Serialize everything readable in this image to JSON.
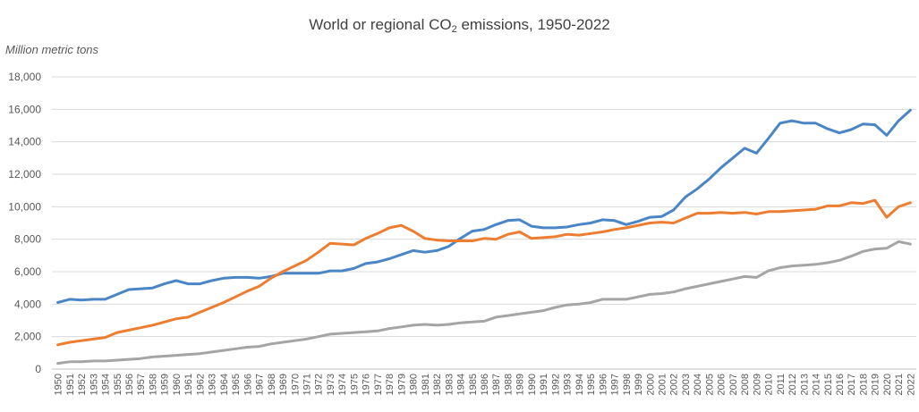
{
  "chart_data": {
    "type": "line",
    "title": {
      "before": "World or regional CO",
      "sub": "2",
      "after": " emissions, 1950-2022"
    },
    "ylabel": "Million metric tons",
    "xlabel": "",
    "ylim": [
      0,
      18000
    ],
    "yticks": [
      "0",
      "2,000",
      "4,000",
      "6,000",
      "8,000",
      "10,000",
      "12,000",
      "14,000",
      "16,000",
      "18,000"
    ],
    "x": [
      "1950",
      "1951",
      "1952",
      "1953",
      "1954",
      "1955",
      "1956",
      "1957",
      "1958",
      "1959",
      "1960",
      "1961",
      "1962",
      "1963",
      "1964",
      "1965",
      "1966",
      "1967",
      "1968",
      "1969",
      "1970",
      "1971",
      "1972",
      "1973",
      "1974",
      "1975",
      "1976",
      "1977",
      "1978",
      "1979",
      "1980",
      "1981",
      "1982",
      "1983",
      "1984",
      "1985",
      "1986",
      "1987",
      "1988",
      "1989",
      "1990",
      "1991",
      "1992",
      "1993",
      "1994",
      "1995",
      "1996",
      "1997",
      "1998",
      "1999",
      "2000",
      "2001",
      "2002",
      "2003",
      "2004",
      "2005",
      "2006",
      "2007",
      "2008",
      "2009",
      "2010",
      "2011",
      "2012",
      "2013",
      "2014",
      "2015",
      "2016",
      "2017",
      "2018",
      "2019",
      "2020",
      "2021",
      "2022"
    ],
    "grid": true,
    "legend": "none",
    "series": [
      {
        "color": "#4a86c5",
        "values": [
          4100,
          4300,
          4250,
          4300,
          4300,
          4600,
          4900,
          4950,
          5000,
          5250,
          5450,
          5250,
          5250,
          5450,
          5600,
          5650,
          5650,
          5600,
          5700,
          5900,
          5900,
          5900,
          5900,
          6050,
          6050,
          6200,
          6500,
          6600,
          6800,
          7050,
          7300,
          7200,
          7300,
          7550,
          8050,
          8500,
          8600,
          8900,
          9150,
          9200,
          8800,
          8700,
          8700,
          8750,
          8900,
          9000,
          9200,
          9150,
          8900,
          9100,
          9350,
          9400,
          9800,
          10600,
          11100,
          11700,
          12400,
          13000,
          13600,
          13300,
          14200,
          15150,
          15300,
          15150,
          15150,
          14800,
          14550,
          14750,
          15100,
          15050,
          14400,
          15300,
          15950
        ]
      },
      {
        "color": "#ed7d31",
        "values": [
          1500,
          1650,
          1750,
          1850,
          1950,
          2250,
          2400,
          2550,
          2700,
          2900,
          3100,
          3200,
          3500,
          3800,
          4100,
          4450,
          4800,
          5100,
          5600,
          6000,
          6350,
          6700,
          7200,
          7750,
          7700,
          7650,
          8050,
          8350,
          8700,
          8850,
          8500,
          8050,
          7950,
          7900,
          7900,
          7900,
          8050,
          8000,
          8300,
          8450,
          8050,
          8100,
          8150,
          8300,
          8250,
          8350,
          8450,
          8600,
          8700,
          8850,
          9000,
          9050,
          9000,
          9300,
          9600,
          9600,
          9650,
          9600,
          9650,
          9550,
          9700,
          9700,
          9750,
          9800,
          9850,
          10050,
          10050,
          10250,
          10200,
          10400,
          9350,
          10000,
          10250
        ]
      },
      {
        "color": "#a5a5a5",
        "values": [
          350,
          450,
          450,
          500,
          500,
          550,
          600,
          650,
          750,
          800,
          850,
          900,
          950,
          1050,
          1150,
          1250,
          1350,
          1400,
          1550,
          1650,
          1750,
          1850,
          2000,
          2150,
          2200,
          2250,
          2300,
          2350,
          2500,
          2600,
          2700,
          2750,
          2700,
          2750,
          2850,
          2900,
          2950,
          3200,
          3300,
          3400,
          3500,
          3600,
          3800,
          3950,
          4000,
          4100,
          4300,
          4300,
          4300,
          4450,
          4600,
          4650,
          4750,
          4950,
          5100,
          5250,
          5400,
          5550,
          5700,
          5650,
          6050,
          6250,
          6350,
          6400,
          6450,
          6550,
          6700,
          6950,
          7250,
          7400,
          7450,
          7850,
          7700
        ]
      }
    ]
  }
}
